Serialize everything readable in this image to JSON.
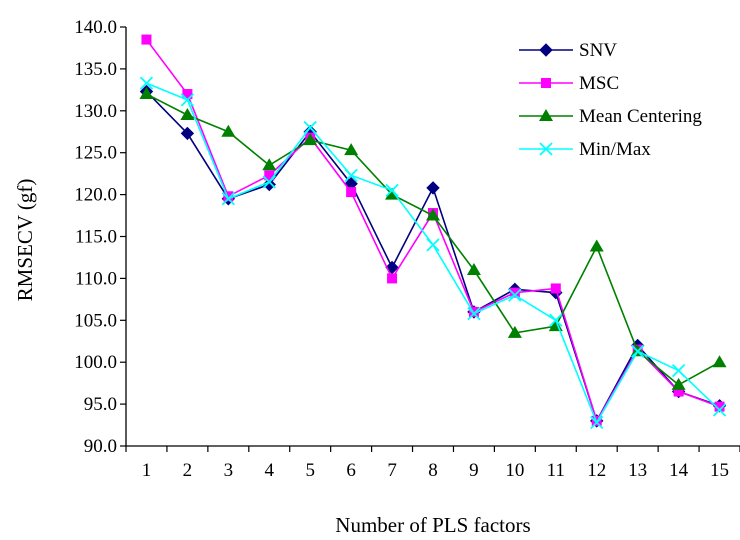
{
  "chart_data": {
    "type": "line",
    "xlabel": "Number of PLS factors",
    "ylabel": "RMSECV (gf)",
    "x": [
      1,
      2,
      3,
      4,
      5,
      6,
      7,
      8,
      9,
      10,
      11,
      12,
      13,
      14,
      15
    ],
    "x_tick_labels": [
      "1",
      "2",
      "3",
      "4",
      "5",
      "6",
      "7",
      "8",
      "9",
      "10",
      "11",
      "12",
      "13",
      "14",
      "15"
    ],
    "ylim": [
      90,
      140
    ],
    "y_ticks": [
      90,
      95,
      100,
      105,
      110,
      115,
      120,
      125,
      130,
      135,
      140
    ],
    "y_tick_labels": [
      "90.0",
      "95.0",
      "100.0",
      "105.0",
      "110.0",
      "115.0",
      "120.0",
      "125.0",
      "130.0",
      "135.0",
      "140.0"
    ],
    "grid": false,
    "legend_position": "top-right",
    "series": [
      {
        "name": "SNV",
        "color": "#000080",
        "marker": "diamond",
        "values": [
          132.3,
          127.3,
          119.5,
          121.2,
          127.5,
          121.3,
          111.3,
          120.8,
          106.0,
          108.7,
          108.3,
          93.0,
          102.0,
          96.5,
          94.8
        ]
      },
      {
        "name": "MSC",
        "color": "#FF00FF",
        "marker": "square",
        "values": [
          138.5,
          132.0,
          119.8,
          122.3,
          126.8,
          120.3,
          110.0,
          117.8,
          106.0,
          108.3,
          108.8,
          93.0,
          101.5,
          96.5,
          94.7
        ]
      },
      {
        "name": "Mean Centering",
        "color": "#008000",
        "marker": "triangle",
        "values": [
          132.0,
          129.5,
          127.5,
          123.5,
          126.5,
          125.3,
          120.0,
          117.5,
          111.0,
          103.5,
          104.3,
          113.8,
          101.3,
          97.3,
          100.0
        ]
      },
      {
        "name": "Min/Max",
        "color": "#00FFFF",
        "marker": "x",
        "values": [
          133.3,
          131.3,
          119.5,
          121.5,
          128.0,
          122.3,
          120.5,
          114.0,
          105.8,
          108.0,
          105.0,
          92.8,
          101.3,
          99.0,
          94.3
        ]
      }
    ]
  }
}
